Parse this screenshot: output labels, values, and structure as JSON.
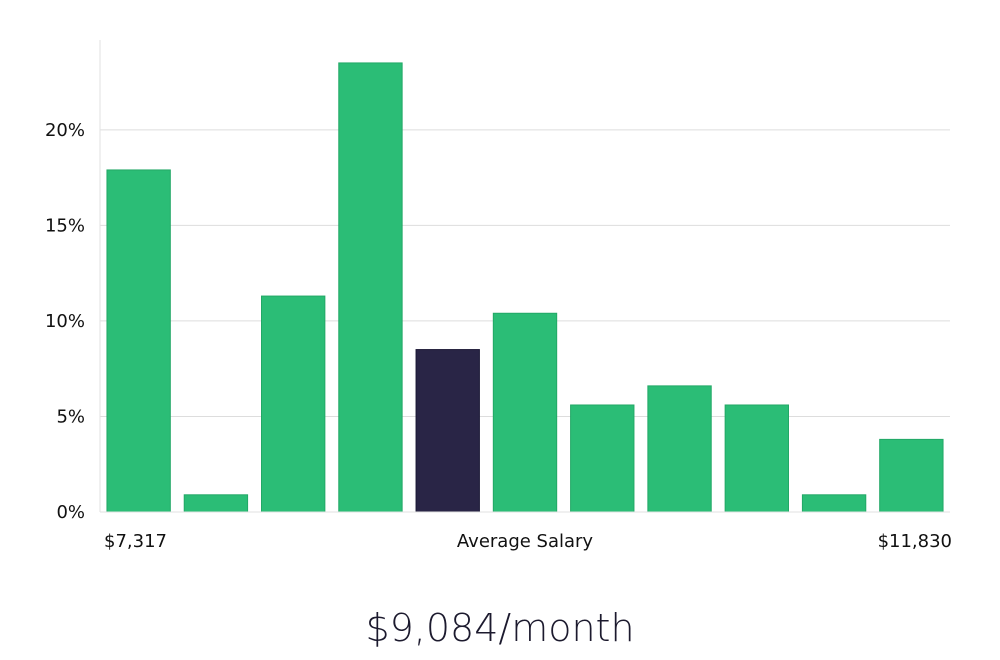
{
  "chart_data": {
    "type": "bar",
    "values": [
      17.9,
      0.9,
      11.3,
      23.5,
      8.5,
      10.4,
      5.6,
      6.6,
      5.6,
      0.9,
      3.8
    ],
    "highlight_index": 4,
    "y_ticks": [
      "0%",
      "5%",
      "10%",
      "15%",
      "20%"
    ],
    "y_tick_values": [
      0,
      5,
      10,
      15,
      20
    ],
    "ylim": [
      0,
      24.7
    ],
    "x_labels": {
      "left": "$7,317",
      "center": "Average Salary",
      "right": "$11,830"
    },
    "colors": {
      "bar": "#2bbd76",
      "bar_highlight": "#292546",
      "grid": "#dddddd",
      "axis": "#e2e2e2"
    },
    "grid": true
  },
  "headline": {
    "salary": "$9,084/month"
  }
}
